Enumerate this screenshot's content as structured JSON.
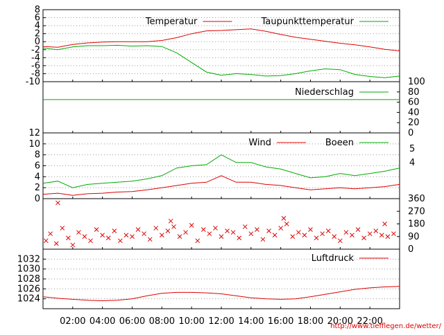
{
  "footer": {
    "url": "http://www.tiefflegen.de/wetter/"
  },
  "x_axis": {
    "tick_labels": [
      "02:00",
      "04:00",
      "06:00",
      "08:00",
      "10:00",
      "12:00",
      "14:00",
      "16:00",
      "18:00",
      "20:00",
      "22:00"
    ]
  },
  "chart_data": [
    {
      "type": "line",
      "panel": "temperature",
      "x_unit": "hours since midnight",
      "ylim": [
        -10,
        8
      ],
      "yticks": [
        "8",
        "6",
        "4",
        "2",
        "0",
        "-2",
        "-4",
        "-6",
        "-8",
        "-10"
      ],
      "grid": true,
      "legend_placement": "top",
      "series": [
        {
          "name": "Temperatur",
          "color": "#dd0000",
          "x": [
            0,
            1,
            2,
            3,
            4,
            5,
            6,
            7,
            8,
            9,
            10,
            11,
            12,
            13,
            14,
            15,
            16,
            17,
            18,
            19,
            20,
            21,
            22,
            23,
            24
          ],
          "values": [
            -1.2,
            -1.4,
            -0.7,
            -0.3,
            -0.1,
            0.0,
            0.0,
            0.0,
            0.3,
            1.0,
            2.0,
            2.7,
            2.8,
            3.0,
            3.2,
            2.6,
            1.8,
            1.1,
            0.6,
            0.1,
            -0.4,
            -0.8,
            -1.3,
            -1.9,
            -2.3
          ]
        },
        {
          "name": "Taupunkttemperatur",
          "color": "#00aa00",
          "x": [
            0,
            1,
            2,
            3,
            4,
            5,
            6,
            7,
            8,
            9,
            10,
            11,
            12,
            13,
            14,
            15,
            16,
            17,
            18,
            19,
            20,
            21,
            22,
            23,
            24
          ],
          "values": [
            -1.6,
            -2.0,
            -1.3,
            -1.0,
            -1.0,
            -0.9,
            -1.1,
            -1.0,
            -1.2,
            -2.8,
            -5.2,
            -7.6,
            -8.4,
            -8.0,
            -8.2,
            -8.6,
            -8.5,
            -8.0,
            -7.3,
            -6.8,
            -7.0,
            -8.2,
            -8.7,
            -9.0,
            -8.6
          ]
        }
      ]
    },
    {
      "type": "line",
      "panel": "precipitation",
      "ylim": [
        0,
        100
      ],
      "yticks": [
        "100",
        "80",
        "60",
        "40",
        "20",
        "0"
      ],
      "grid": false,
      "legend_placement": "top-right",
      "series": [
        {
          "name": "Niederschlag",
          "color": "#00aa00",
          "x": [
            0,
            24
          ],
          "values": [
            65,
            65
          ]
        }
      ]
    },
    {
      "type": "line",
      "panel": "wind",
      "ylim": [
        0,
        12
      ],
      "yticks": [
        "12",
        "10",
        "8",
        "6",
        "4",
        "2",
        "0"
      ],
      "secondary_labels": [
        "5",
        "4"
      ],
      "grid": true,
      "legend_placement": "top-right",
      "series": [
        {
          "name": "Wind",
          "color": "#dd0000",
          "x": [
            0,
            1,
            2,
            3,
            4,
            5,
            6,
            7,
            8,
            9,
            10,
            11,
            12,
            13,
            14,
            15,
            16,
            17,
            18,
            19,
            20,
            21,
            22,
            23,
            24
          ],
          "values": [
            0.8,
            1.0,
            0.6,
            0.9,
            1.0,
            1.2,
            1.3,
            1.6,
            2.0,
            2.4,
            2.8,
            3.0,
            4.2,
            3.0,
            3.0,
            2.6,
            2.4,
            2.0,
            1.6,
            1.8,
            2.0,
            1.8,
            2.0,
            2.2,
            2.6
          ]
        },
        {
          "name": "Boeen",
          "color": "#00aa00",
          "x": [
            0,
            1,
            2,
            3,
            4,
            5,
            6,
            7,
            8,
            9,
            10,
            11,
            12,
            13,
            14,
            15,
            16,
            17,
            18,
            19,
            20,
            21,
            22,
            23,
            24
          ],
          "values": [
            2.8,
            3.2,
            2.0,
            2.6,
            2.8,
            3.0,
            3.2,
            3.6,
            4.2,
            5.6,
            6.0,
            6.2,
            8.0,
            6.6,
            6.6,
            5.8,
            5.4,
            4.6,
            3.8,
            4.0,
            4.6,
            4.2,
            4.6,
            5.0,
            5.6
          ]
        }
      ]
    },
    {
      "type": "scatter",
      "panel": "wind_direction",
      "ylim": [
        0,
        360
      ],
      "yticks": [
        "360",
        "270",
        "180",
        "90",
        "0"
      ],
      "grid": false,
      "series": [
        {
          "color": "#dd0000",
          "x": [
            0.2,
            0.5,
            0.9,
            1.3,
            1.7,
            2.0,
            2.4,
            2.8,
            3.2,
            3.6,
            4.0,
            4.4,
            4.8,
            5.2,
            5.6,
            6.0,
            6.4,
            6.8,
            7.2,
            7.6,
            8.0,
            8.4,
            8.8,
            9.2,
            9.6,
            10.0,
            10.4,
            10.8,
            11.2,
            11.6,
            12.0,
            12.4,
            12.8,
            13.2,
            13.6,
            14.0,
            14.4,
            14.8,
            15.2,
            15.6,
            16.0,
            16.4,
            16.8,
            17.2,
            17.6,
            18.0,
            18.4,
            18.8,
            19.2,
            19.6,
            20.0,
            20.4,
            20.8,
            21.2,
            21.6,
            22.0,
            22.4,
            22.8,
            23.2,
            23.6,
            1.0,
            8.6,
            16.2,
            23.0
          ],
          "values": [
            60,
            110,
            40,
            150,
            80,
            30,
            120,
            90,
            60,
            140,
            100,
            80,
            130,
            60,
            100,
            90,
            140,
            110,
            70,
            150,
            100,
            130,
            160,
            90,
            120,
            170,
            60,
            140,
            110,
            150,
            90,
            130,
            120,
            80,
            160,
            110,
            140,
            70,
            130,
            100,
            150,
            180,
            90,
            120,
            100,
            140,
            80,
            110,
            130,
            90,
            60,
            120,
            100,
            140,
            80,
            110,
            130,
            100,
            90,
            110,
            330,
            200,
            220,
            180
          ]
        }
      ]
    },
    {
      "type": "line",
      "panel": "pressure",
      "ylim": [
        1022,
        1034
      ],
      "yticks": [
        "1032",
        "1030",
        "1028",
        "1026",
        "1024"
      ],
      "grid": true,
      "legend_placement": "top-right",
      "series": [
        {
          "name": "Luftdruck",
          "color": "#dd0000",
          "x": [
            0,
            1,
            2,
            3,
            4,
            5,
            6,
            7,
            8,
            9,
            10,
            11,
            12,
            13,
            14,
            15,
            16,
            17,
            18,
            19,
            20,
            21,
            22,
            23,
            24
          ],
          "values": [
            1024.4,
            1024.1,
            1023.9,
            1023.7,
            1023.6,
            1023.7,
            1024.0,
            1024.6,
            1025.1,
            1025.3,
            1025.3,
            1025.2,
            1025.0,
            1024.6,
            1024.2,
            1024.0,
            1023.9,
            1024.0,
            1024.4,
            1024.9,
            1025.4,
            1025.9,
            1026.2,
            1026.4,
            1026.5
          ]
        }
      ]
    }
  ]
}
